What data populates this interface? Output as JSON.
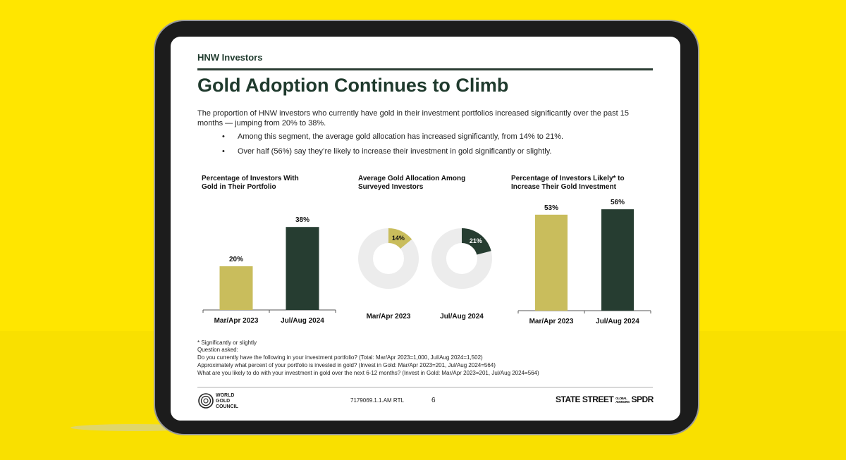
{
  "header": {
    "section": "HNW Investors",
    "title": "Gold Adoption Continues to Climb"
  },
  "body": {
    "paragraph": "The proportion of HNW investors who currently have gold in their investment portfolios increased significantly over the past 15 months — jumping from 20% to 38%.",
    "bullets": [
      "Among this segment, the average gold allocation has increased significantly, from 14% to 21%.",
      "Over half (56%) say they’re likely to increase their investment in gold significantly or slightly."
    ]
  },
  "chart_data": [
    {
      "type": "bar",
      "title": "Percentage of Investors With Gold in Their Portfolio",
      "categories": [
        "Mar/Apr 2023",
        "Jul/Aug 2024"
      ],
      "values": [
        20,
        38
      ],
      "value_labels": [
        "20%",
        "38%"
      ],
      "colors": [
        "#c9bd5c",
        "#263d31"
      ]
    },
    {
      "type": "donut",
      "title": "Average Gold Allocation Among Surveyed Investors",
      "categories": [
        "Mar/Apr 2023",
        "Jul/Aug 2024"
      ],
      "values": [
        14,
        21
      ],
      "value_labels": [
        "14%",
        "21%"
      ],
      "colors": [
        "#c9bd5c",
        "#263d31"
      ]
    },
    {
      "type": "bar",
      "title": "Percentage of Investors Likely* to Increase Their Gold Investment",
      "categories": [
        "Mar/Apr 2023",
        "Jul/Aug 2024"
      ],
      "values": [
        53,
        56
      ],
      "value_labels": [
        "53%",
        "56%"
      ],
      "colors": [
        "#c9bd5c",
        "#263d31"
      ]
    }
  ],
  "footnotes": [
    "* Significantly or slightly",
    "Question asked:",
    "Do you currently have the following in your investment portfolio? (Total: Mar/Apr 2023=1,000, Jul/Aug 2024=1,502)",
    "Approximately what percent of your portfolio is invested in gold? (Invest in Gold: Mar/Apr 2023=201, Jul/Aug 2024=564)",
    "What are you likely to do with your investment in gold over the next 6-12 months? (Invest in Gold: Mar/Apr 2023=201, Jul/Aug 2024=564)"
  ],
  "footer": {
    "logo_left": [
      "WORLD",
      "GOLD",
      "COUNCIL"
    ],
    "code": "7179069.1.1.AM RTL",
    "page": "6",
    "logo_right": [
      "STATE STREET",
      "GLOBAL",
      "ADVISORS",
      "SPDR"
    ]
  }
}
